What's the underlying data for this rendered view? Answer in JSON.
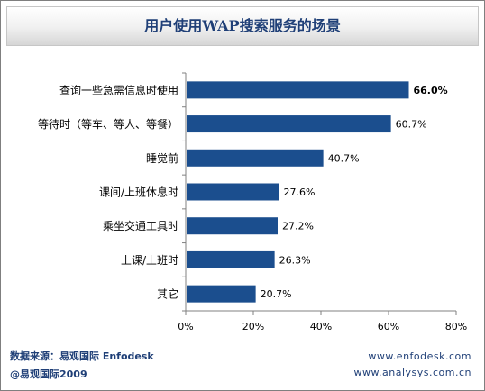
{
  "colors": {
    "bar": "#1b4e8e",
    "title": "#1f3f77",
    "footer": "#1f3f77",
    "axis": "#808080"
  },
  "chart_data": {
    "type": "bar",
    "orientation": "horizontal",
    "title": "用户使用WAP搜索服务的场景",
    "xlabel": "",
    "ylabel": "",
    "categories": [
      "查询一些急需信息时使用",
      "等待时（等车、等人、等餐）",
      "睡觉前",
      "课间/上班休息时",
      "乘坐交通工具时",
      "上课/上班时",
      "其它"
    ],
    "values": [
      66.0,
      60.7,
      40.7,
      27.6,
      27.2,
      26.3,
      20.7
    ],
    "value_labels": [
      "66.0%",
      "60.7%",
      "40.7%",
      "27.6%",
      "27.2%",
      "26.3%",
      "20.7%"
    ],
    "highlight_index": 0,
    "xlim": [
      0,
      80
    ],
    "xticks": [
      0,
      20,
      40,
      60,
      80
    ],
    "xtick_labels": [
      "0%",
      "20%",
      "40%",
      "60%",
      "80%"
    ],
    "grid": false,
    "legend": "none"
  },
  "footer": {
    "source": "数据来源：易观国际 Enfodesk",
    "copyright": "@易观国际2009",
    "url1": "www.enfodesk.com",
    "url2": "www.analysys.com.cn"
  }
}
